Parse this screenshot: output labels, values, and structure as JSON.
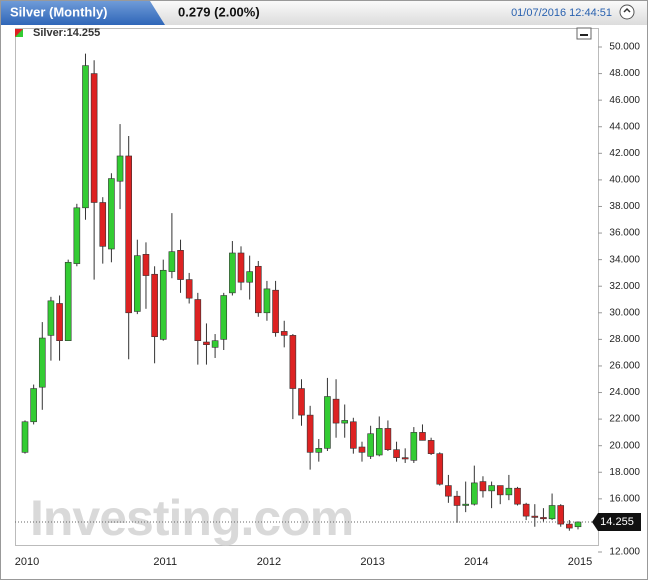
{
  "chart_data": {
    "type": "candlestick",
    "title": "Silver (Monthly)",
    "change": "0.279 (2.00%)",
    "timestamp": "01/07/2016 12:44:51",
    "legend_label": "Silver:14.255",
    "watermark": "Investing.com",
    "categories": [
      "2010",
      null,
      null,
      null,
      null,
      null,
      null,
      null,
      null,
      null,
      null,
      null,
      null,
      null,
      null,
      null,
      "2011",
      null,
      null,
      null,
      null,
      null,
      null,
      null,
      null,
      null,
      null,
      null,
      "2012",
      null,
      null,
      null,
      null,
      null,
      null,
      null,
      null,
      null,
      null,
      null,
      "2013",
      null,
      null,
      null,
      null,
      null,
      null,
      null,
      null,
      null,
      null,
      null,
      "2014",
      null,
      null,
      null,
      null,
      null,
      null,
      null,
      null,
      null,
      null,
      null,
      "2015"
    ],
    "series": [
      {
        "name": "Silver",
        "up_color": "#33cc33",
        "down_color": "#dd2222",
        "open": [
          19.5,
          21.8,
          24.4,
          28.3,
          30.7,
          27.9,
          33.7,
          37.9,
          48.0,
          38.3,
          34.8,
          39.9,
          41.8,
          30.1,
          34.4,
          32.9,
          28.0,
          33.1,
          34.7,
          32.5,
          31.0,
          27.8,
          27.4,
          28.0,
          31.5,
          34.5,
          32.3,
          33.5,
          30.0,
          31.7,
          28.6,
          28.3,
          24.3,
          22.3,
          19.5,
          19.8,
          23.5,
          21.7,
          21.8,
          19.9,
          19.2,
          19.3,
          21.3,
          19.7,
          19.1,
          18.9,
          21.0,
          20.4,
          19.4,
          17.0,
          16.2,
          15.5,
          15.6,
          17.3,
          16.6,
          17.0,
          16.3,
          16.8,
          15.6,
          14.7,
          14.6,
          14.5,
          15.5,
          14.1,
          13.9
        ],
        "high": [
          21.9,
          24.6,
          29.3,
          31.2,
          31.3,
          34.0,
          38.2,
          49.5,
          49.0,
          38.7,
          40.5,
          44.2,
          43.3,
          35.5,
          35.3,
          33.5,
          34.0,
          37.5,
          35.5,
          33.0,
          31.5,
          29.2,
          28.4,
          31.5,
          35.4,
          35.0,
          34.3,
          33.9,
          32.4,
          32.4,
          29.4,
          28.4,
          25.0,
          23.0,
          20.5,
          25.1,
          25.0,
          23.1,
          22.1,
          20.3,
          21.5,
          22.2,
          21.9,
          20.3,
          19.8,
          21.4,
          21.6,
          20.6,
          19.5,
          17.8,
          16.6,
          17.3,
          18.5,
          17.7,
          17.3,
          17.0,
          17.8,
          16.9,
          15.7,
          15.6,
          15.3,
          16.4,
          15.6,
          14.4,
          14.3
        ],
        "low": [
          19.4,
          21.6,
          22.7,
          26.4,
          26.4,
          27.9,
          33.5,
          37.0,
          32.5,
          33.7,
          33.8,
          37.8,
          26.5,
          29.9,
          30.3,
          26.2,
          27.9,
          32.6,
          31.5,
          30.7,
          26.1,
          26.1,
          26.6,
          27.2,
          31.3,
          31.7,
          31.0,
          29.7,
          29.4,
          28.2,
          27.4,
          22.0,
          21.5,
          18.2,
          18.8,
          19.6,
          20.6,
          20.6,
          19.4,
          18.8,
          19.0,
          19.2,
          19.6,
          18.8,
          18.7,
          18.7,
          20.4,
          19.3,
          17.0,
          15.7,
          14.2,
          15.0,
          15.5,
          16.1,
          15.3,
          15.6,
          15.9,
          15.5,
          14.4,
          13.9,
          14.3,
          14.4,
          13.9,
          13.6,
          13.7
        ],
        "close": [
          21.8,
          24.3,
          28.1,
          30.9,
          27.9,
          33.8,
          37.9,
          48.6,
          38.3,
          35.0,
          40.1,
          41.8,
          30.0,
          34.3,
          32.8,
          28.2,
          33.2,
          34.6,
          32.5,
          31.1,
          27.9,
          27.6,
          27.9,
          31.3,
          34.5,
          32.3,
          33.1,
          30.0,
          31.8,
          28.5,
          28.3,
          24.3,
          22.3,
          19.5,
          19.8,
          23.7,
          21.7,
          21.9,
          19.8,
          19.5,
          20.9,
          21.3,
          19.7,
          19.1,
          19.0,
          21.0,
          20.4,
          19.4,
          17.1,
          16.2,
          15.5,
          15.6,
          17.2,
          16.6,
          17.0,
          16.3,
          16.8,
          15.6,
          14.7,
          14.6,
          14.5,
          15.5,
          14.1,
          13.8,
          14.255
        ]
      }
    ],
    "ylim": [
      12,
      50
    ],
    "yticks": [
      {
        "value": 12,
        "label": "12.000"
      },
      {
        "value": 14,
        "label": "14.000"
      },
      {
        "value": 16,
        "label": "16.000"
      },
      {
        "value": 18,
        "label": "18.000"
      },
      {
        "value": 20,
        "label": "20.000"
      },
      {
        "value": 22,
        "label": "22.000"
      },
      {
        "value": 24,
        "label": "24.000"
      },
      {
        "value": 26,
        "label": "26.000"
      },
      {
        "value": 28,
        "label": "28.000"
      },
      {
        "value": 30,
        "label": "30.000"
      },
      {
        "value": 32,
        "label": "32.000"
      },
      {
        "value": 34,
        "label": "34.000"
      },
      {
        "value": 36,
        "label": "36.000"
      },
      {
        "value": 38,
        "label": "38.000"
      },
      {
        "value": 40,
        "label": "40.000"
      },
      {
        "value": 42,
        "label": "42.000"
      },
      {
        "value": 44,
        "label": "44.000"
      },
      {
        "value": 46,
        "label": "46.000"
      },
      {
        "value": 48,
        "label": "48.000"
      },
      {
        "value": 50,
        "label": "50.000"
      }
    ],
    "grid": false
  }
}
